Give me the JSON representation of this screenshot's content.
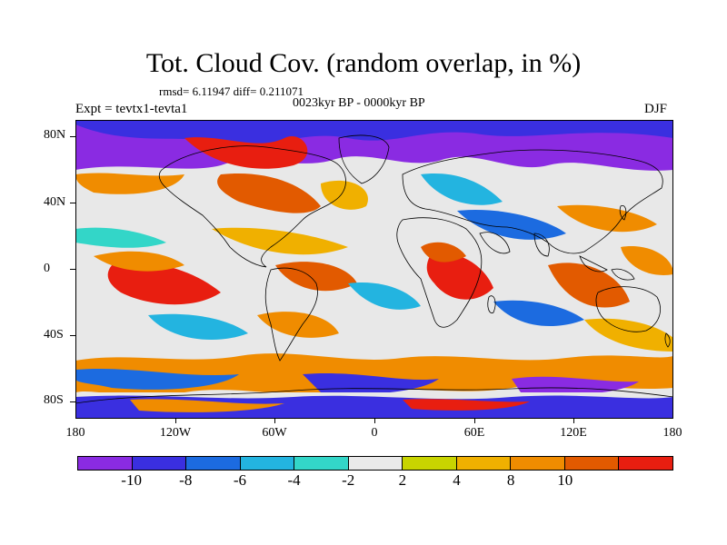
{
  "title": "Tot. Cloud Cov. (random overlap, in %)",
  "stats": "rmsd= 6.11947 diff= 0.211071",
  "experiment": "Expt = tevtx1-tevta1",
  "period": "0023kyr BP - 0000kyr BP",
  "season": "DJF",
  "lat_labels": [
    "80N",
    "40N",
    "0",
    "40S",
    "80S"
  ],
  "lon_labels": [
    "180",
    "120W",
    "60W",
    "0",
    "60E",
    "120E",
    "180"
  ],
  "colorbar": {
    "colors": [
      "#8a2be2",
      "#3a2fe0",
      "#1c6be0",
      "#23b4e0",
      "#33d6c8",
      "#eaeaea",
      "#c8d400",
      "#f0b000",
      "#f08c00",
      "#e25a00",
      "#e81e10"
    ],
    "labels": [
      "-10",
      "-8",
      "-6",
      "-4",
      "-2",
      "2",
      "4",
      "8",
      "10"
    ]
  },
  "colors": {
    "ocean_neutral": "#e8e8e8",
    "coastline": "#000000"
  }
}
